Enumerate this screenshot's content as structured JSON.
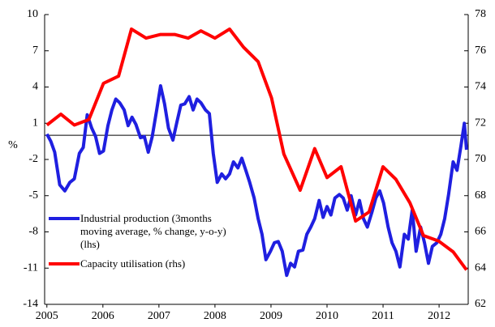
{
  "chart_data": {
    "type": "line",
    "y_label": "%",
    "xlim": [
      2004.96,
      2012.52
    ],
    "xticks": [
      2005,
      2006,
      2007,
      2008,
      2009,
      2010,
      2011,
      2012
    ],
    "ylim": [
      -14,
      10
    ],
    "yticks": [
      -14,
      -11,
      -8,
      -5,
      -2,
      1,
      4,
      7,
      10
    ],
    "y2lim": [
      62,
      78
    ],
    "y2ticks": [
      62,
      64,
      66,
      68,
      70,
      72,
      74,
      76,
      78
    ],
    "hline": 0,
    "legend": "left",
    "series": [
      {
        "name": "Industrial production (3months moving average, % change, y-o-y) (lhs)",
        "color": "#1f1fe0",
        "x": [
          2005.0,
          2005.07,
          2005.14,
          2005.23,
          2005.32,
          2005.41,
          2005.49,
          2005.58,
          2005.65,
          2005.72,
          2005.8,
          2005.87,
          2005.94,
          2006.01,
          2006.09,
          2006.16,
          2006.23,
          2006.3,
          2006.38,
          2006.45,
          2006.52,
          2006.59,
          2006.67,
          2006.74,
          2006.81,
          2006.88,
          2006.96,
          2007.03,
          2007.1,
          2007.17,
          2007.25,
          2007.32,
          2007.39,
          2007.46,
          2007.54,
          2007.61,
          2007.68,
          2007.75,
          2007.83,
          2007.9,
          2007.97,
          2008.04,
          2008.12,
          2008.19,
          2008.26,
          2008.33,
          2008.41,
          2008.48,
          2008.55,
          2008.62,
          2008.7,
          2008.77,
          2008.84,
          2008.91,
          2008.99,
          2009.06,
          2009.13,
          2009.2,
          2009.28,
          2009.35,
          2009.42,
          2009.49,
          2009.57,
          2009.64,
          2009.71,
          2009.78,
          2009.86,
          2009.93,
          2010.0,
          2010.07,
          2010.14,
          2010.22,
          2010.29,
          2010.36,
          2010.43,
          2010.51,
          2010.58,
          2010.65,
          2010.72,
          2010.8,
          2010.87,
          2010.94,
          2011.01,
          2011.09,
          2011.16,
          2011.23,
          2011.3,
          2011.38,
          2011.45,
          2011.52,
          2011.59,
          2011.67,
          2011.74,
          2011.81,
          2011.88,
          2011.96,
          2012.03,
          2012.1,
          2012.17,
          2012.25,
          2012.32,
          2012.39,
          2012.45,
          2012.49
        ],
        "values": [
          0.1,
          -0.5,
          -1.4,
          -4.1,
          -4.6,
          -3.9,
          -3.6,
          -1.5,
          -1.0,
          1.7,
          0.6,
          -0.1,
          -1.5,
          -1.3,
          0.8,
          2.1,
          3.0,
          2.7,
          2.1,
          0.8,
          1.5,
          0.9,
          -0.2,
          -0.1,
          -1.4,
          -0.1,
          2.1,
          4.1,
          2.6,
          0.6,
          -0.4,
          1.1,
          2.5,
          2.6,
          3.2,
          2.1,
          3.0,
          2.7,
          2.1,
          1.8,
          -1.5,
          -3.9,
          -3.2,
          -3.6,
          -3.2,
          -2.2,
          -2.7,
          -1.9,
          -2.9,
          -3.9,
          -5.2,
          -6.9,
          -8.2,
          -10.3,
          -9.6,
          -8.9,
          -8.8,
          -9.6,
          -11.6,
          -10.6,
          -10.9,
          -9.6,
          -9.5,
          -8.2,
          -7.6,
          -6.9,
          -5.4,
          -6.8,
          -5.9,
          -6.6,
          -5.2,
          -4.9,
          -5.2,
          -6.2,
          -5.0,
          -6.6,
          -5.4,
          -6.9,
          -7.6,
          -6.4,
          -5.2,
          -4.6,
          -5.6,
          -7.6,
          -8.9,
          -9.6,
          -10.9,
          -8.2,
          -8.6,
          -6.2,
          -9.6,
          -7.6,
          -8.9,
          -10.6,
          -9.2,
          -8.9,
          -8.2,
          -6.9,
          -4.9,
          -2.2,
          -2.9,
          -0.9,
          1.0,
          -1.2
        ]
      },
      {
        "name": "Capacity utilisation (rhs)",
        "color": "#ff0000",
        "axis": "y2",
        "x": [
          2005.0,
          2005.25,
          2005.49,
          2005.75,
          2006.01,
          2006.28,
          2006.51,
          2006.77,
          2007.03,
          2007.28,
          2007.52,
          2007.75,
          2008.0,
          2008.26,
          2008.51,
          2008.77,
          2009.01,
          2009.23,
          2009.52,
          2009.78,
          2010.0,
          2010.25,
          2010.51,
          2010.75,
          2011.0,
          2011.23,
          2011.48,
          2011.72,
          2011.99,
          2012.25,
          2012.49
        ],
        "values": [
          71.9,
          72.5,
          71.9,
          72.2,
          74.2,
          74.6,
          77.2,
          76.7,
          76.9,
          76.9,
          76.7,
          77.1,
          76.7,
          77.2,
          76.2,
          75.4,
          73.4,
          70.3,
          68.3,
          70.6,
          69.0,
          69.6,
          66.6,
          67.1,
          69.6,
          68.9,
          67.6,
          65.8,
          65.5,
          64.9,
          63.9
        ]
      }
    ]
  }
}
